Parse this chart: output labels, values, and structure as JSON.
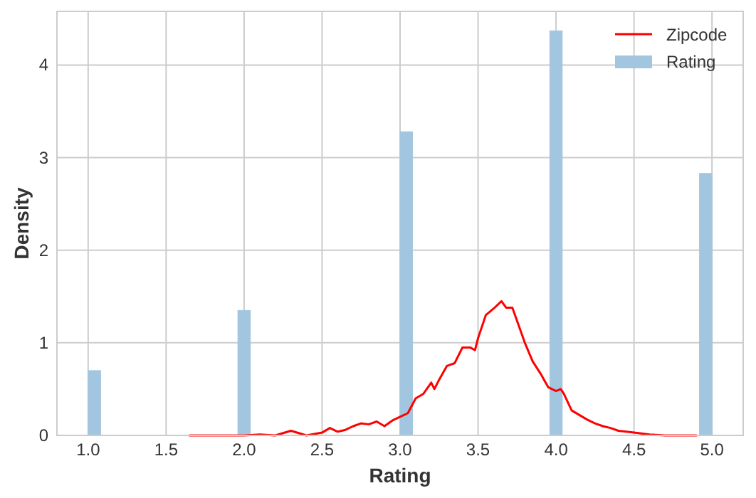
{
  "chart_data": {
    "type": "histogram",
    "xlabel": "Rating",
    "ylabel": "Density",
    "xlim": [
      0.8,
      5.2
    ],
    "ylim": [
      0,
      4.58
    ],
    "xticks": [
      {
        "value": 1,
        "label": "1.0"
      },
      {
        "value": 1.5,
        "label": "1.5"
      },
      {
        "value": 2,
        "label": "2.0"
      },
      {
        "value": 2.5,
        "label": "2.5"
      },
      {
        "value": 3,
        "label": "3.0"
      },
      {
        "value": 3.5,
        "label": "3.5"
      },
      {
        "value": 4,
        "label": "4.0"
      },
      {
        "value": 4.5,
        "label": "4.5"
      },
      {
        "value": 5,
        "label": "5.0"
      }
    ],
    "yticks": [
      0,
      1,
      2,
      3,
      4
    ],
    "grid": true,
    "legend": "top right",
    "series": [
      {
        "type": "line",
        "name": "Zipcode",
        "color": "#ff0000",
        "x": [
          1.65,
          2.0,
          2.1,
          2.2,
          2.3,
          2.4,
          2.5,
          2.55,
          2.6,
          2.65,
          2.7,
          2.75,
          2.8,
          2.85,
          2.9,
          2.95,
          3.0,
          3.05,
          3.1,
          3.15,
          3.2,
          3.22,
          3.25,
          3.3,
          3.35,
          3.4,
          3.45,
          3.48,
          3.5,
          3.55,
          3.6,
          3.65,
          3.68,
          3.72,
          3.8,
          3.85,
          3.9,
          3.95,
          4.0,
          4.03,
          4.05,
          4.1,
          4.15,
          4.2,
          4.25,
          4.3,
          4.35,
          4.4,
          4.5,
          4.6,
          4.7,
          4.9
        ],
        "values": [
          0,
          0,
          0.01,
          0,
          0.05,
          0,
          0.03,
          0.08,
          0.04,
          0.06,
          0.1,
          0.13,
          0.12,
          0.15,
          0.1,
          0.16,
          0.2,
          0.24,
          0.4,
          0.45,
          0.57,
          0.5,
          0.6,
          0.75,
          0.78,
          0.95,
          0.95,
          0.92,
          1.05,
          1.3,
          1.37,
          1.45,
          1.38,
          1.38,
          1.0,
          0.8,
          0.67,
          0.52,
          0.48,
          0.5,
          0.45,
          0.27,
          0.22,
          0.17,
          0.13,
          0.1,
          0.08,
          0.05,
          0.03,
          0.01,
          0,
          0
        ]
      },
      {
        "name": "Rating",
        "color": "#a3c6e0",
        "bins": [
          1,
          1.08,
          1.16,
          1.24,
          1.32,
          1.4,
          1.48,
          1.56,
          1.64,
          1.72,
          1.8,
          1.88,
          1.96,
          2.04,
          2.12,
          2.2,
          2.28,
          2.36,
          2.44,
          2.52,
          2.6,
          2.68,
          2.76,
          2.84,
          2.92,
          3,
          3.08,
          3.16,
          3.24,
          3.32,
          3.4,
          3.48,
          3.56,
          3.64,
          3.72,
          3.8,
          3.88,
          3.96,
          4.04,
          4.12,
          4.2,
          4.28,
          4.36,
          4.44,
          4.52,
          4.6,
          4.68,
          4.76,
          4.84,
          4.92,
          5
        ],
        "values": [
          0.7,
          0,
          0,
          0,
          0,
          0,
          0,
          0,
          0,
          0,
          0,
          0,
          1.35,
          0,
          0,
          0,
          0,
          0,
          0,
          0,
          0,
          0,
          0,
          0,
          0,
          3.28,
          0,
          0,
          0,
          0,
          0,
          0,
          0,
          0,
          0,
          0,
          0,
          4.37,
          0,
          0,
          0,
          0,
          0,
          0,
          0,
          0,
          0,
          0,
          0,
          2.83
        ]
      }
    ]
  }
}
